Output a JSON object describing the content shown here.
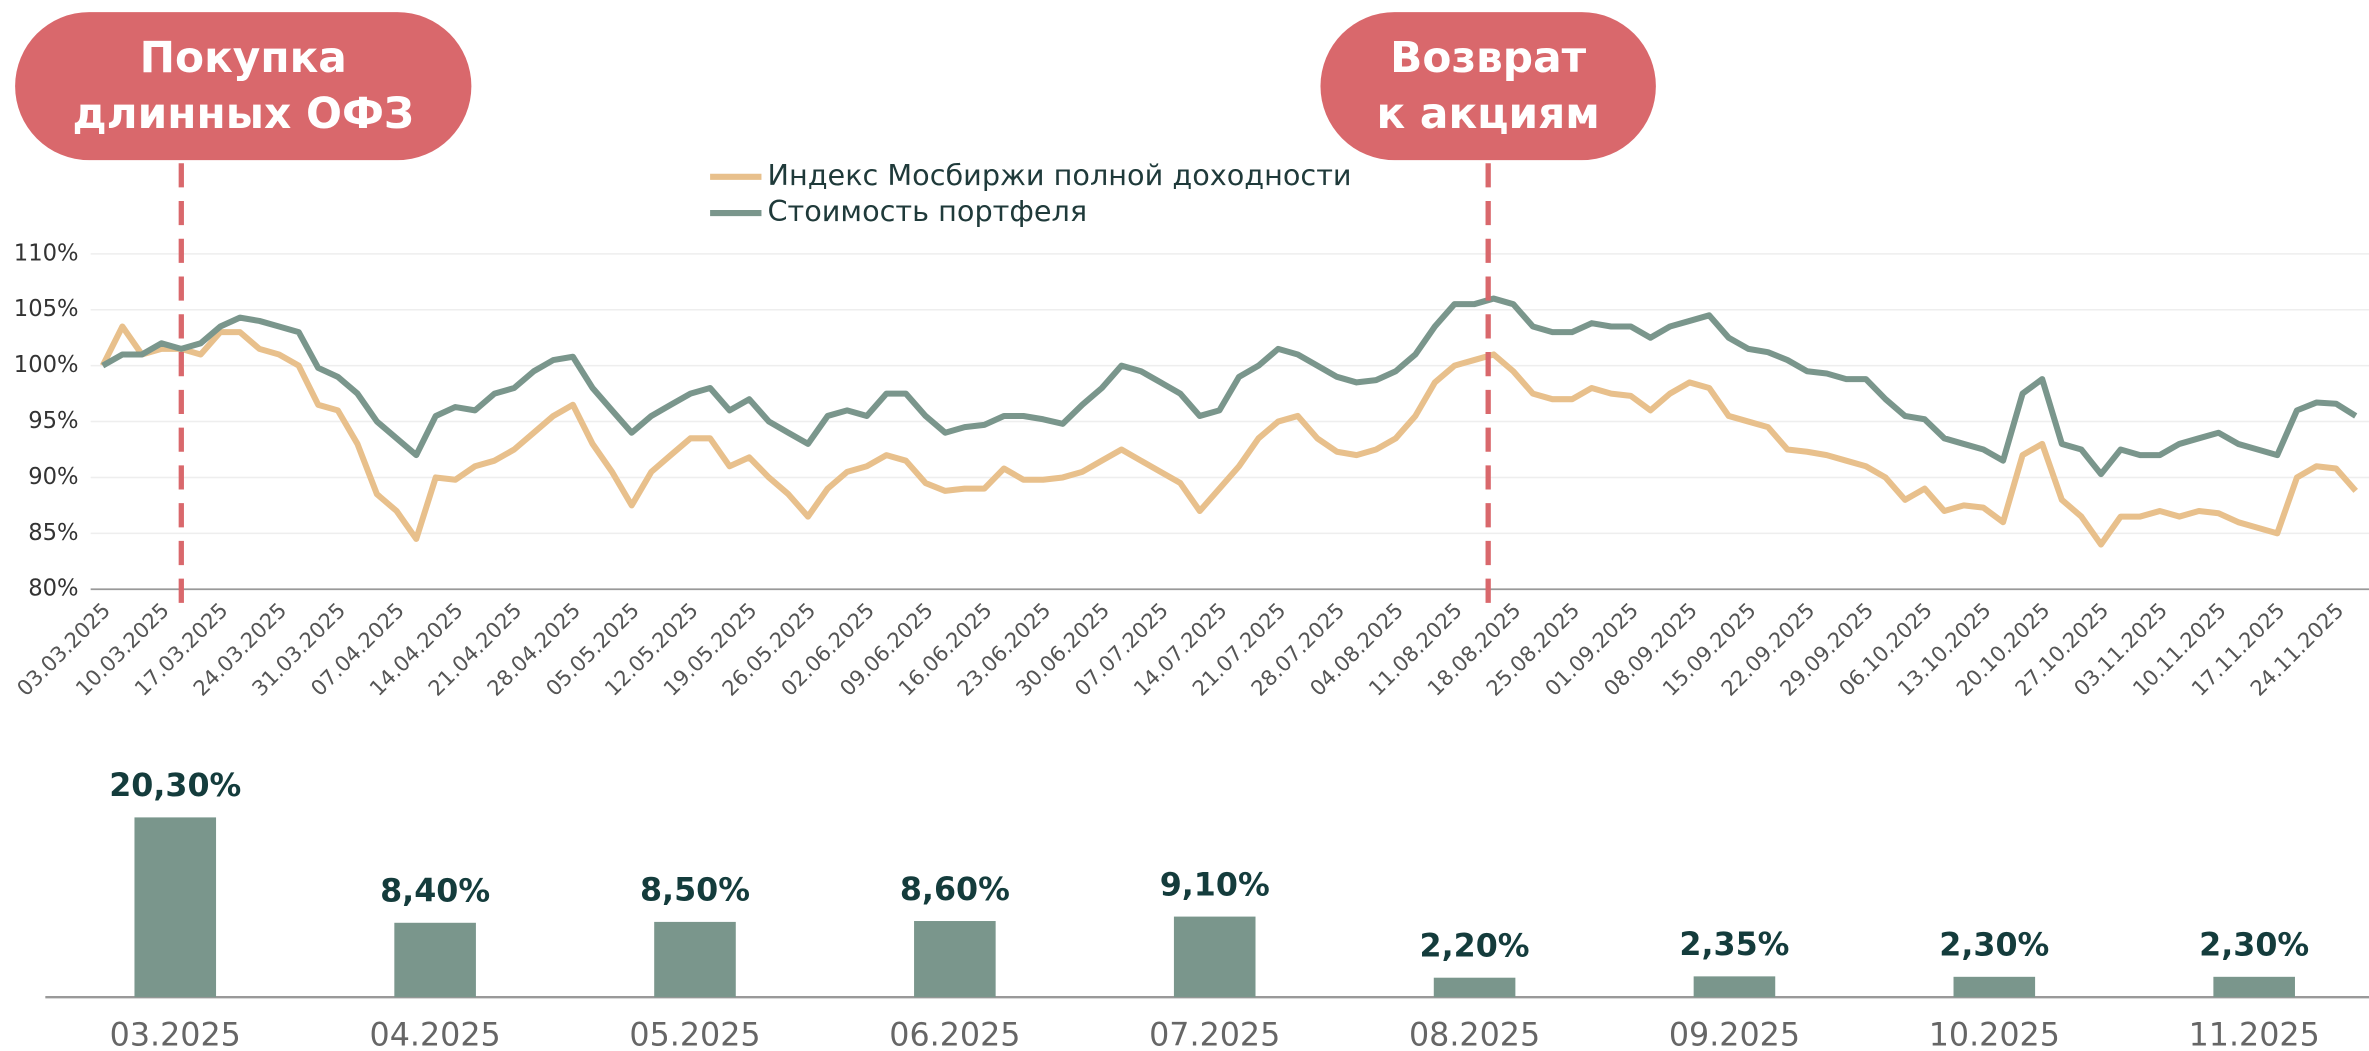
{
  "chart_data": [
    {
      "type": "line",
      "annotations": [
        {
          "lines": [
            "Покупка",
            "длинных ОФЗ"
          ]
        },
        {
          "lines": [
            "Возврат",
            "к акциям"
          ]
        }
      ],
      "categories": [
        "03.03.2025",
        null,
        null,
        "10.03.2025",
        null,
        null,
        "17.03.2025",
        null,
        null,
        "24.03.2025",
        null,
        null,
        "31.03.2025",
        null,
        null,
        "07.04.2025",
        null,
        null,
        "14.04.2025",
        null,
        null,
        "21.04.2025",
        null,
        null,
        "28.04.2025",
        null,
        null,
        "05.05.2025",
        null,
        null,
        "12.05.2025",
        null,
        null,
        "19.05.2025",
        null,
        null,
        "26.05.2025",
        null,
        null,
        "02.06.2025",
        null,
        null,
        "09.06.2025",
        null,
        null,
        "16.06.2025",
        null,
        null,
        "23.06.2025",
        null,
        null,
        "30.06.2025",
        null,
        null,
        "07.07.2025",
        null,
        null,
        "14.07.2025",
        null,
        null,
        "21.07.2025",
        null,
        null,
        "28.07.2025",
        null,
        null,
        "04.08.2025",
        null,
        null,
        "11.08.2025",
        null,
        null,
        "18.08.2025",
        null,
        null,
        "25.08.2025",
        null,
        null,
        "01.09.2025",
        null,
        null,
        "08.09.2025",
        null,
        null,
        "15.09.2025",
        null,
        null,
        "22.09.2025",
        null,
        null,
        "29.09.2025",
        null,
        null,
        "06.10.2025",
        null,
        null,
        "13.10.2025",
        null,
        null,
        "20.10.2025",
        null,
        null,
        "27.10.2025",
        null,
        null,
        "03.11.2025",
        null,
        null,
        "10.11.2025",
        null,
        null,
        "17.11.2025",
        null,
        null,
        "24.11.2025",
        null
      ],
      "series": [
        {
          "name": "Индекс Мосбиржи полной доходности",
          "color": "#e8c08c",
          "values": [
            100,
            103.5,
            101,
            101.5,
            101.5,
            101,
            103,
            103,
            101.5,
            101,
            100,
            96.5,
            96,
            93,
            88.5,
            87,
            84.5,
            90,
            89.8,
            91,
            91.5,
            92.5,
            94,
            95.5,
            96.5,
            93,
            90.5,
            87.5,
            90.5,
            92,
            93.5,
            93.5,
            91,
            91.8,
            90,
            88.5,
            86.5,
            89,
            90.5,
            91,
            92,
            91.5,
            89.5,
            88.8,
            89,
            89,
            90.8,
            89.8,
            89.8,
            90,
            90.5,
            91.5,
            92.5,
            91.5,
            90.5,
            89.5,
            87,
            89,
            91,
            93.5,
            95,
            95.5,
            93.5,
            92.3,
            92,
            92.5,
            93.5,
            95.5,
            98.5,
            100,
            100.5,
            101,
            99.5,
            97.5,
            97,
            97,
            98,
            97.5,
            97.3,
            96,
            97.5,
            98.5,
            98,
            95.5,
            95,
            94.5,
            92.5,
            92.3,
            92,
            91.5,
            91,
            90,
            88,
            89,
            87,
            87.5,
            87.3,
            86,
            92,
            93,
            88,
            86.5,
            84,
            86.5,
            86.5,
            87,
            86.5,
            87,
            86.8,
            86,
            85.5,
            85,
            90,
            91,
            90.8,
            88.8
          ]
        },
        {
          "name": "Стоимость портфеля",
          "color": "#7a968c",
          "values": [
            100,
            101,
            101,
            102,
            101.5,
            102,
            103.5,
            104.3,
            104,
            103.5,
            103,
            99.8,
            99,
            97.5,
            95,
            93.5,
            92,
            95.5,
            96.3,
            96,
            97.5,
            98,
            99.5,
            100.5,
            100.8,
            98,
            96,
            94,
            95.5,
            96.5,
            97.5,
            98,
            96,
            97,
            95,
            94,
            93,
            95.5,
            96,
            95.5,
            97.5,
            97.5,
            95.5,
            94,
            94.5,
            94.7,
            95.5,
            95.5,
            95.2,
            94.8,
            96.5,
            98,
            100,
            99.5,
            98.5,
            97.5,
            95.5,
            96,
            99,
            100,
            101.5,
            101,
            100,
            99,
            98.5,
            98.7,
            99.5,
            101,
            103.5,
            105.5,
            105.5,
            106,
            105.5,
            103.5,
            103,
            103,
            103.8,
            103.5,
            103.5,
            102.5,
            103.5,
            104,
            104.5,
            102.5,
            101.5,
            101.2,
            100.5,
            99.5,
            99.3,
            98.8,
            98.8,
            97,
            95.5,
            95.2,
            93.5,
            93,
            92.5,
            91.5,
            97.5,
            98.8,
            93,
            92.5,
            90.3,
            92.5,
            92,
            92,
            93,
            93.5,
            94,
            93,
            92.5,
            92,
            96,
            96.7,
            96.6,
            95.5
          ]
        }
      ],
      "ylim": [
        80,
        110
      ],
      "yticks": [
        {
          "value": 80,
          "label": "80%"
        },
        {
          "value": 85,
          "label": "85%"
        },
        {
          "value": 90,
          "label": "90%"
        },
        {
          "value": 95,
          "label": "95%"
        },
        {
          "value": 100,
          "label": "100%"
        },
        {
          "value": 105,
          "label": "105%"
        },
        {
          "value": 110,
          "label": "110%"
        }
      ],
      "grid": true
    },
    {
      "type": "bar",
      "categories": [
        "03.2025",
        "04.2025",
        "05.2025",
        "06.2025",
        "07.2025",
        "08.2025",
        "09.2025",
        "10.2025",
        "11.2025"
      ],
      "values": [
        20.3,
        8.4,
        8.5,
        8.6,
        9.1,
        2.2,
        2.35,
        2.3,
        2.3
      ],
      "value_labels": [
        "20,30%",
        "8,40%",
        "8,50%",
        "8,60%",
        "9,10%",
        "2,20%",
        "2,35%",
        "2,30%",
        "2,30%"
      ],
      "color": "#7a968c"
    }
  ]
}
